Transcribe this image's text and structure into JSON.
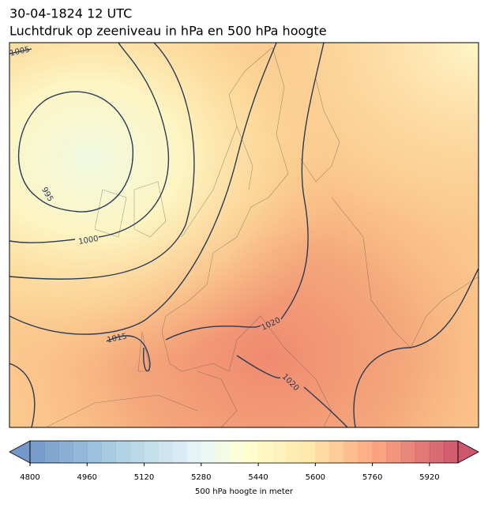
{
  "header": {
    "line1": "30-04-1824 12 UTC",
    "line2": "Luchtdruk op zeeniveau in hPa en 500 hPa hoogte"
  },
  "contour_labels": [
    "1005",
    "995",
    "1000",
    "1015",
    "1020",
    "1020"
  ],
  "colorbar": {
    "range": [
      4800,
      6000
    ],
    "step": 40,
    "ticks": [
      4800,
      4960,
      5120,
      5280,
      5440,
      5600,
      5760,
      5920
    ],
    "label": "500 hPa hoogte in meter"
  }
}
